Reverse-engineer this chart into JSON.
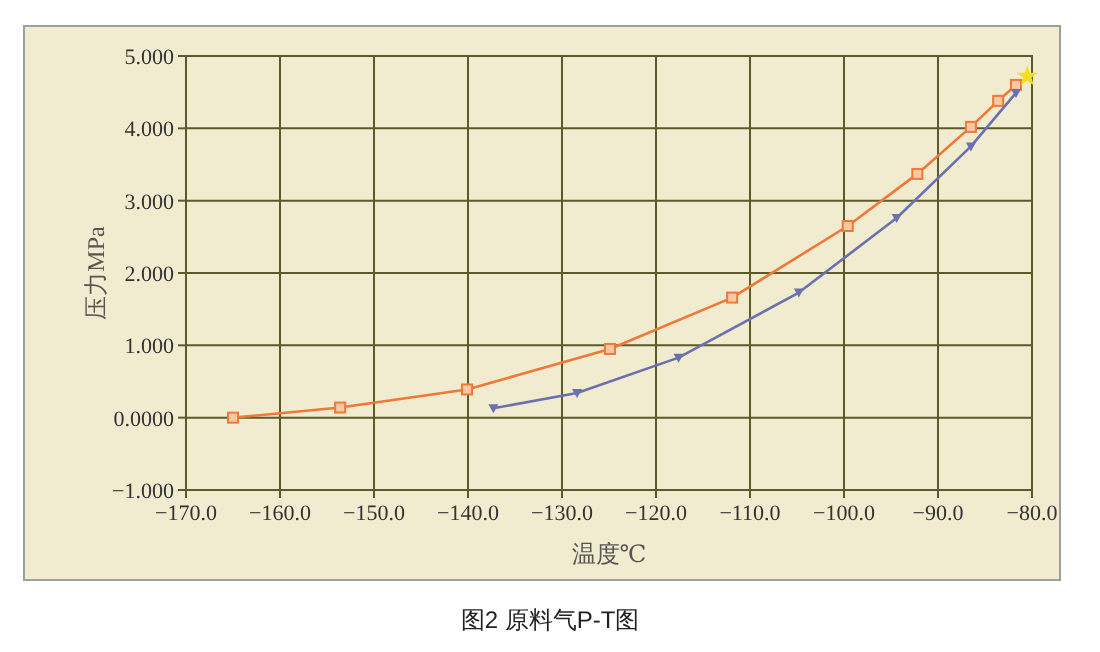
{
  "chart_data": {
    "type": "line",
    "title": "图2 原料气P-T图",
    "xlabel": "温度℃",
    "ylabel": "压力MPa",
    "xlim": [
      -170,
      -80
    ],
    "xticks": [
      {
        "value": -170,
        "label": "−170.0"
      },
      {
        "value": -160,
        "label": "−160.0"
      },
      {
        "value": -150,
        "label": "−150.0"
      },
      {
        "value": -140,
        "label": "−140.0"
      },
      {
        "value": -130,
        "label": "−130.0"
      },
      {
        "value": -120,
        "label": "−120.0"
      },
      {
        "value": -110,
        "label": "−110.0"
      },
      {
        "value": -100,
        "label": "−100.0"
      },
      {
        "value": -90,
        "label": "−90.0"
      },
      {
        "value": -80,
        "label": "−80.0"
      }
    ],
    "ylim": [
      -1,
      5
    ],
    "yticks": [
      {
        "value": -1,
        "label": "−1.000"
      },
      {
        "value": 0,
        "label": "0.0000"
      },
      {
        "value": 1,
        "label": "1.000"
      },
      {
        "value": 2,
        "label": "2.000"
      },
      {
        "value": 3,
        "label": "3.000"
      },
      {
        "value": 4,
        "label": "4.000"
      },
      {
        "value": 5,
        "label": "5.000"
      }
    ],
    "grid": true,
    "line_style": "solid",
    "series": [
      {
        "color": "#f07838",
        "marker": "square",
        "x": [
          -165,
          -153.6,
          -140.1,
          -124.9,
          -111.9,
          -99.6,
          -92.2,
          -86.5,
          -83.6,
          -81.7
        ],
        "values": [
          0.0,
          0.14,
          0.39,
          0.95,
          1.66,
          2.65,
          3.37,
          4.02,
          4.38,
          4.6
        ]
      },
      {
        "color": "#6a70b0",
        "marker": "triangle",
        "x": [
          -137.3,
          -128.4,
          -117.6,
          -104.8,
          -94.4,
          -86.5,
          -81.7
        ],
        "values": [
          0.13,
          0.34,
          0.83,
          1.73,
          2.76,
          3.75,
          4.49
        ]
      },
      {
        "type": "scatter",
        "color": "#f0e020",
        "marker": "star",
        "x": [
          -80.5
        ],
        "values": [
          4.72
        ]
      }
    ]
  }
}
